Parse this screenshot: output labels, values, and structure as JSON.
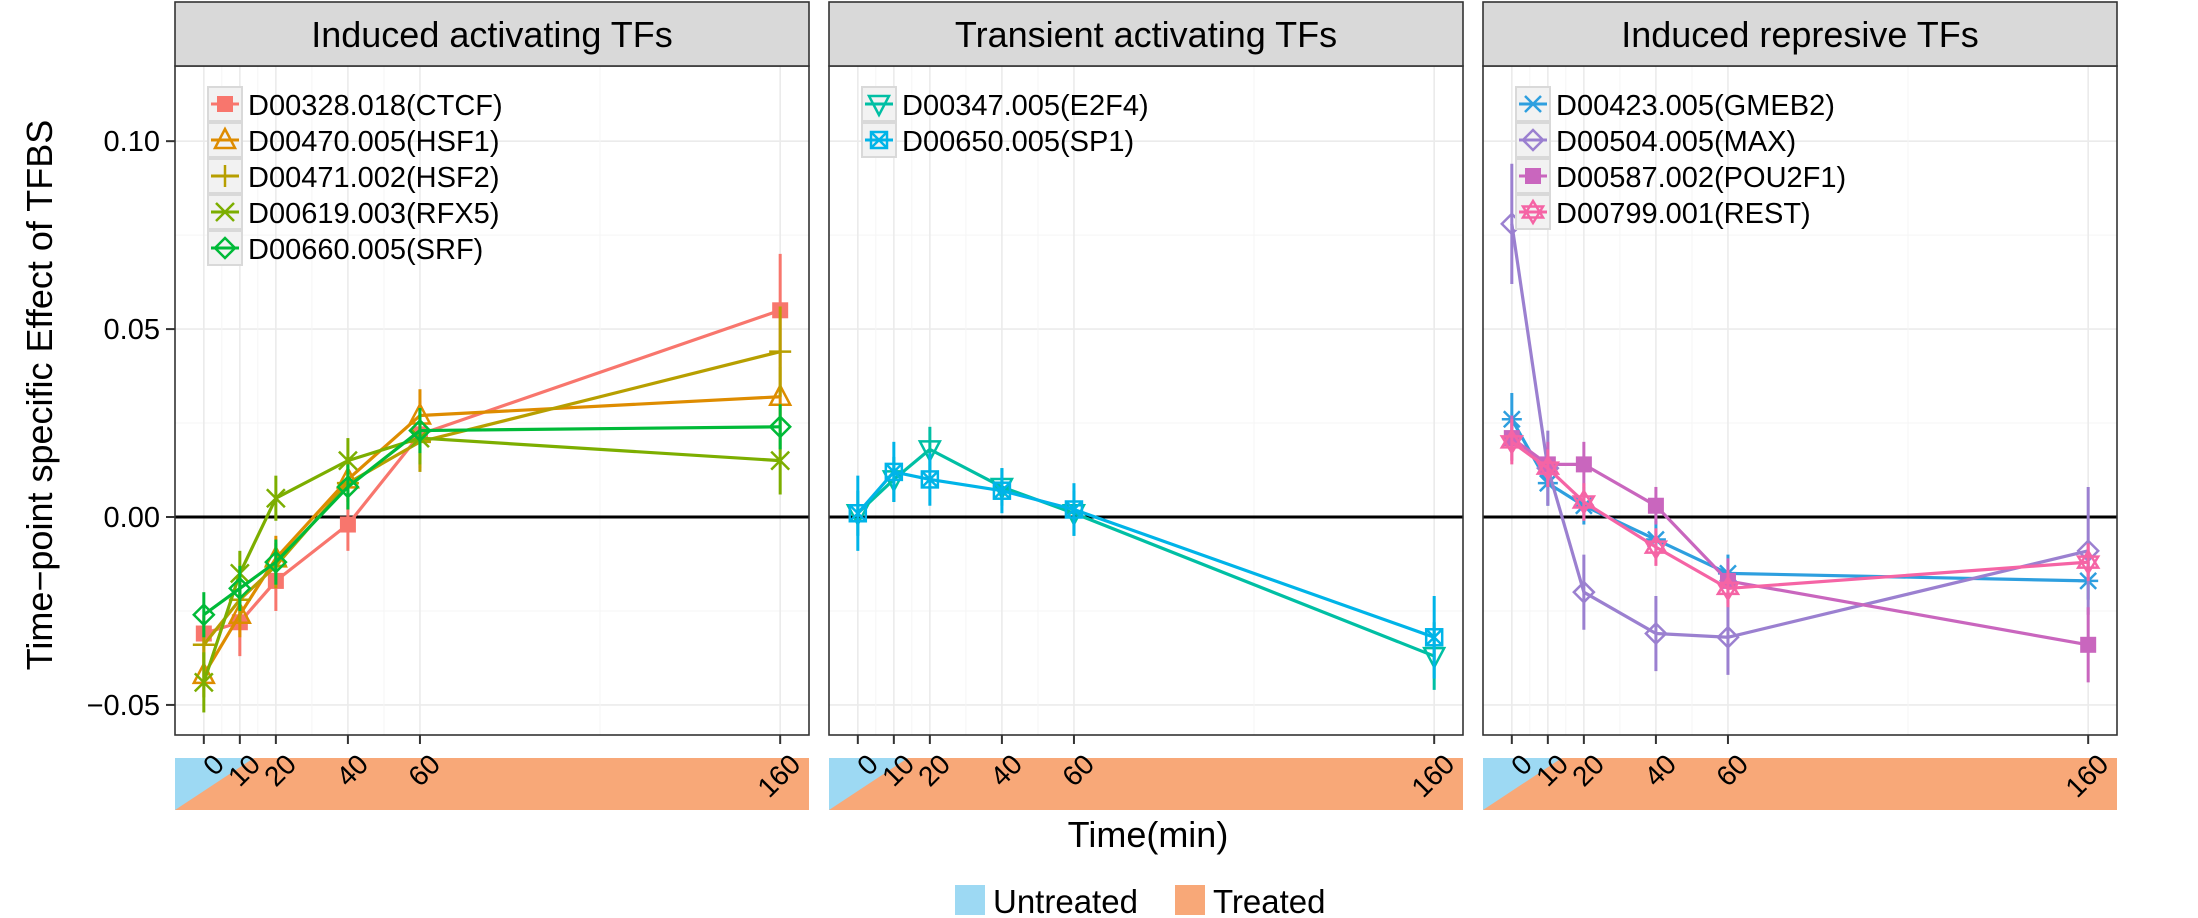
{
  "chart_data": {
    "type": "line",
    "ylabel": "Time−point specific Effect of TFBS",
    "xlabel": "Time(min)",
    "ylim": [
      -0.058,
      0.12
    ],
    "xlim": [
      -8,
      168
    ],
    "y_ticks": [
      -0.05,
      0.0,
      0.05,
      0.1
    ],
    "y_tick_labels": [
      "−0.05",
      "0.00",
      "0.05",
      "0.10"
    ],
    "x_ticks": [
      0,
      10,
      20,
      40,
      60,
      160
    ],
    "x_tick_labels": [
      "0",
      "10",
      "20",
      "40",
      "60",
      "160"
    ],
    "grid": true,
    "zero_line": true,
    "treatment_legend": [
      {
        "label": "Untreated",
        "color": "#9DD9F3"
      },
      {
        "label": "Treated",
        "color": "#F8A878"
      }
    ],
    "panels": [
      {
        "title": "Induced activating TFs",
        "series": [
          {
            "name": "D00328.018(CTCF)",
            "color": "#F8766D",
            "shape": "square-filled",
            "x": [
              0,
              10,
              20,
              40,
              60,
              160
            ],
            "y": [
              -0.031,
              -0.028,
              -0.017,
              -0.002,
              0.022,
              0.055
            ],
            "err": [
              0.005,
              0.009,
              0.008,
              0.007,
              0.009,
              0.015
            ]
          },
          {
            "name": "D00470.005(HSF1)",
            "color": "#DE8C00",
            "shape": "triangle-up",
            "x": [
              0,
              10,
              20,
              40,
              60,
              160
            ],
            "y": [
              -0.042,
              -0.026,
              -0.011,
              0.01,
              0.027,
              0.032
            ],
            "err": [
              0.006,
              0.006,
              0.006,
              0.006,
              0.007,
              0.008
            ]
          },
          {
            "name": "D00471.002(HSF2)",
            "color": "#B79F00",
            "shape": "plus",
            "x": [
              0,
              10,
              20,
              40,
              60,
              160
            ],
            "y": [
              -0.034,
              -0.022,
              -0.013,
              0.009,
              0.02,
              0.044
            ],
            "err": [
              0.006,
              0.006,
              0.006,
              0.007,
              0.008,
              0.012
            ]
          },
          {
            "name": "D00619.003(RFX5)",
            "color": "#7CAE00",
            "shape": "cross",
            "x": [
              0,
              10,
              20,
              40,
              60,
              160
            ],
            "y": [
              -0.044,
              -0.015,
              0.005,
              0.015,
              0.021,
              0.015
            ],
            "err": [
              0.008,
              0.006,
              0.006,
              0.006,
              0.007,
              0.009
            ]
          },
          {
            "name": "D00660.005(SRF)",
            "color": "#00BA38",
            "shape": "diamond",
            "x": [
              0,
              10,
              20,
              40,
              60,
              160
            ],
            "y": [
              -0.026,
              -0.019,
              -0.012,
              0.008,
              0.023,
              0.024
            ],
            "err": [
              0.006,
              0.006,
              0.006,
              0.006,
              0.006,
              0.006
            ]
          }
        ]
      },
      {
        "title": "Transient activating TFs",
        "series": [
          {
            "name": "D00347.005(E2F4)",
            "color": "#00BFA4",
            "shape": "triangle-down",
            "x": [
              0,
              10,
              20,
              40,
              60,
              160
            ],
            "y": [
              0.001,
              0.01,
              0.018,
              0.008,
              0.001,
              -0.037
            ],
            "err": [
              0.006,
              0.006,
              0.006,
              0.005,
              0.006,
              0.009
            ]
          },
          {
            "name": "D00650.005(SP1)",
            "color": "#00B4E8",
            "shape": "square-cross",
            "x": [
              0,
              10,
              20,
              40,
              60,
              160
            ],
            "y": [
              0.001,
              0.012,
              0.01,
              0.007,
              0.002,
              -0.032
            ],
            "err": [
              0.01,
              0.008,
              0.007,
              0.006,
              0.007,
              0.011
            ]
          }
        ]
      },
      {
        "title": "Induced represive TFs",
        "series": [
          {
            "name": "D00423.005(GMEB2)",
            "color": "#2E9FDF",
            "shape": "asterisk",
            "x": [
              0,
              10,
              20,
              40,
              60,
              160
            ],
            "y": [
              0.026,
              0.009,
              0.003,
              -0.006,
              -0.015,
              -0.017
            ],
            "err": [
              0.007,
              0.006,
              0.005,
              0.005,
              0.005,
              0.005
            ]
          },
          {
            "name": "D00504.005(MAX)",
            "color": "#9B80D0",
            "shape": "diamond",
            "x": [
              0,
              10,
              20,
              40,
              60,
              160
            ],
            "y": [
              0.078,
              0.013,
              -0.02,
              -0.031,
              -0.032,
              -0.009
            ],
            "err": [
              0.016,
              0.01,
              0.01,
              0.01,
              0.01,
              0.017
            ]
          },
          {
            "name": "D00587.002(POU2F1)",
            "color": "#C966BE",
            "shape": "square-filled",
            "x": [
              0,
              10,
              20,
              40,
              60,
              160
            ],
            "y": [
              0.021,
              0.014,
              0.014,
              0.003,
              -0.017,
              -0.034
            ],
            "err": [
              0.006,
              0.006,
              0.006,
              0.005,
              0.006,
              0.01
            ]
          },
          {
            "name": "D00799.001(REST)",
            "color": "#F564A5",
            "shape": "star-of-david",
            "x": [
              0,
              10,
              20,
              40,
              60,
              160
            ],
            "y": [
              0.02,
              0.013,
              0.004,
              -0.008,
              -0.019,
              -0.012
            ],
            "err": [
              0.006,
              0.005,
              0.005,
              0.005,
              0.005,
              0.005
            ]
          }
        ]
      }
    ]
  }
}
